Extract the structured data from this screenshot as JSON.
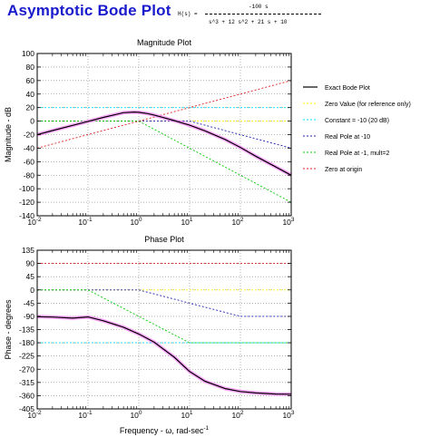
{
  "header": {
    "title": "Asymptotic Bode Plot",
    "tf_lhs": "H(s) =",
    "tf_numerator": "-100 s",
    "tf_denominator": "s^3 + 12 s^2 + 21 s + 10"
  },
  "colors": {
    "exact": "#000000",
    "exact_halo": "#ff80ff",
    "zero_value": "#ffff00",
    "constant": "#00e0ff",
    "real_pole_10": "#2020b0",
    "real_pole_1": "#00cc00",
    "zero_origin": "#e02020",
    "grid": "#808080"
  },
  "legend": [
    {
      "label": "Exact Bode Plot",
      "color_key": "exact"
    },
    {
      "label": "Zero Value (for reference only)",
      "color_key": "zero_value"
    },
    {
      "label": "Constant = -10 (20 dB)",
      "color_key": "constant"
    },
    {
      "label": "Real Pole at -10",
      "color_key": "real_pole_10"
    },
    {
      "label": "Real Pole at -1, mult=2",
      "color_key": "real_pole_1"
    },
    {
      "label": "Zero at origin",
      "color_key": "zero_origin"
    }
  ],
  "chart_data": [
    {
      "type": "line",
      "title": "Magnitude Plot",
      "xlabel": "",
      "ylabel": "Magnitude - dB",
      "xscale": "log",
      "xlim": [
        0.01,
        1000
      ],
      "ylim": [
        -140,
        100
      ],
      "yticks": [
        -140,
        -120,
        -100,
        -80,
        -60,
        -40,
        -20,
        0,
        20,
        40,
        60,
        80,
        100
      ],
      "xtick_labels": [
        {
          "base": "10",
          "exp": "-2"
        },
        {
          "base": "10",
          "exp": "-1"
        },
        {
          "base": "10",
          "exp": "0"
        },
        {
          "base": "10",
          "exp": "1"
        },
        {
          "base": "10",
          "exp": "2"
        },
        {
          "base": "10",
          "exp": "3"
        }
      ],
      "grid": true,
      "series": [
        {
          "name": "Zero Value (for reference only)",
          "x": [
            0.01,
            1000
          ],
          "y": [
            0,
            0
          ]
        },
        {
          "name": "Constant = -10 (20 dB)",
          "x": [
            0.01,
            1000
          ],
          "y": [
            20,
            20
          ]
        },
        {
          "name": "Real Pole at -10",
          "x": [
            0.01,
            10,
            1000
          ],
          "y": [
            0,
            0,
            -40
          ]
        },
        {
          "name": "Real Pole at -1, mult=2",
          "x": [
            0.01,
            1,
            1000
          ],
          "y": [
            0,
            0,
            -120
          ]
        },
        {
          "name": "Zero at origin",
          "x": [
            0.01,
            1000
          ],
          "y": [
            -40,
            60
          ]
        },
        {
          "name": "Exact Bode Plot",
          "x": [
            0.01,
            0.02,
            0.05,
            0.1,
            0.2,
            0.5,
            0.8,
            1,
            1.5,
            2,
            3,
            5,
            10,
            20,
            50,
            100,
            200,
            500,
            1000
          ],
          "y": [
            -20.1,
            -14.0,
            -6.3,
            -0.4,
            5.5,
            12.4,
            13.4,
            13.0,
            11.1,
            8.9,
            5.3,
            0.8,
            -6.0,
            -14.4,
            -27.1,
            -38.9,
            -51.9,
            -67.9,
            -80.0
          ]
        }
      ]
    },
    {
      "type": "line",
      "title": "Phase Plot",
      "xlabel": "Frequency - ω, rad-sec",
      "xlabel_sup": "-1",
      "ylabel": "Phase - degrees",
      "xscale": "log",
      "xlim": [
        0.01,
        1000
      ],
      "ylim": [
        -405,
        135
      ],
      "yticks": [
        -405,
        -360,
        -315,
        -270,
        -225,
        -180,
        -135,
        -90,
        -45,
        0,
        45,
        90,
        135
      ],
      "xtick_labels": [
        {
          "base": "10",
          "exp": "-2"
        },
        {
          "base": "10",
          "exp": "-1"
        },
        {
          "base": "10",
          "exp": "0"
        },
        {
          "base": "10",
          "exp": "1"
        },
        {
          "base": "10",
          "exp": "2"
        },
        {
          "base": "10",
          "exp": "3"
        }
      ],
      "grid": true,
      "series": [
        {
          "name": "Zero Value (for reference only)",
          "x": [
            0.01,
            1000
          ],
          "y": [
            0,
            0
          ]
        },
        {
          "name": "Constant = -10 (20 dB)",
          "x": [
            0.01,
            1000
          ],
          "y": [
            -180,
            -180
          ]
        },
        {
          "name": "Real Pole at -10",
          "x": [
            0.01,
            1,
            100,
            1000
          ],
          "y": [
            0,
            0,
            -90,
            -90
          ]
        },
        {
          "name": "Real Pole at -1, mult=2",
          "x": [
            0.01,
            0.1,
            10,
            1000
          ],
          "y": [
            0,
            0,
            -180,
            -180
          ]
        },
        {
          "name": "Zero at origin",
          "x": [
            0.01,
            1000
          ],
          "y": [
            90,
            90
          ]
        },
        {
          "name": "Exact Bode Plot",
          "x": [
            0.01,
            0.02,
            0.05,
            0.1,
            0.2,
            0.5,
            1,
            2,
            5,
            10,
            20,
            50,
            100,
            200,
            500,
            1000
          ],
          "y": [
            -91.2,
            -92.4,
            -96.0,
            -92.0,
            -105.0,
            -127.0,
            -150.0,
            -178.0,
            -229.0,
            -278.0,
            -311.0,
            -336.0,
            -345.6,
            -350.6,
            -354.4,
            -355.1
          ]
        }
      ]
    }
  ]
}
